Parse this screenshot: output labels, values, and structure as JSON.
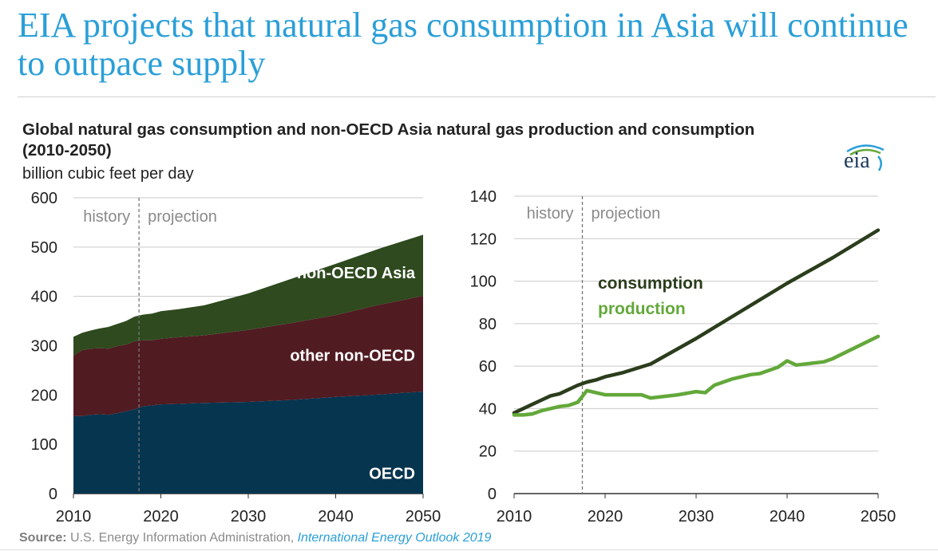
{
  "slide": {
    "title": "EIA projects that natural gas consumption in Asia will continue to outpace supply"
  },
  "chart_header": {
    "title": "Global natural gas consumption and non-OECD Asia natural gas production and consumption (2010-2050)",
    "units": "billion cubic feet per day",
    "logo_text": "eia"
  },
  "source": {
    "label": "Source:",
    "text": "U.S. Energy Information Administration,",
    "link": "International Energy Outlook 2019"
  },
  "colors": {
    "oecd": "#06354f",
    "other_non_oecd": "#511b22",
    "non_oecd_asia": "#2e4a1e",
    "consumption": "#2b3d1c",
    "production": "#63a83a",
    "divider": "#777777",
    "annotation": "#8a8a8a"
  },
  "chart_data": [
    {
      "type": "area",
      "stacked": true,
      "x": [
        2010,
        2011,
        2012,
        2013,
        2014,
        2015,
        2016,
        2017,
        2018,
        2019,
        2020,
        2022,
        2025,
        2030,
        2035,
        2040,
        2045,
        2050
      ],
      "series": [
        {
          "name": "OECD",
          "values": [
            157,
            157,
            160,
            161,
            160,
            163,
            167,
            171,
            177,
            179,
            181,
            182,
            184,
            186,
            190,
            196,
            201,
            207
          ]
        },
        {
          "name": "other non-OECD",
          "values": [
            123,
            134,
            134,
            134,
            134,
            136,
            135,
            138,
            134,
            132,
            133,
            135,
            137,
            146,
            156,
            166,
            182,
            194
          ]
        },
        {
          "name": "non-OECD Asia",
          "values": [
            38,
            35,
            37,
            40,
            44,
            45,
            48,
            50,
            52,
            54,
            56,
            57,
            61,
            74,
            90,
            104,
            114,
            124
          ]
        }
      ],
      "xlim": [
        2010,
        2050
      ],
      "ylim": [
        0,
        600
      ],
      "xticks": [
        "2010",
        "2020",
        "2030",
        "2040",
        "2050"
      ],
      "yticks": [
        "0",
        "100",
        "200",
        "300",
        "400",
        "500",
        "600"
      ],
      "annotations": {
        "history": "history",
        "projection": "projection",
        "divider_year": 2017.5
      }
    },
    {
      "type": "line",
      "series": [
        {
          "name": "consumption",
          "x": [
            2010,
            2011,
            2012,
            2013,
            2014,
            2015,
            2016,
            2017,
            2018,
            2019,
            2020,
            2022,
            2025,
            2030,
            2035,
            2040,
            2045,
            2050
          ],
          "values": [
            38,
            40,
            42,
            44,
            46,
            47,
            49,
            51,
            52.5,
            53.5,
            55,
            57,
            61,
            73,
            86,
            99,
            111,
            124
          ]
        },
        {
          "name": "production",
          "x": [
            2010,
            2011,
            2012,
            2013,
            2014,
            2015,
            2016,
            2017,
            2018,
            2019,
            2020,
            2021,
            2022,
            2024,
            2025,
            2028,
            2030,
            2031,
            2032,
            2034,
            2036,
            2037,
            2039,
            2040,
            2041,
            2044,
            2045,
            2050
          ],
          "values": [
            37,
            37,
            37.5,
            39,
            40,
            41,
            41.5,
            43,
            48.5,
            47.5,
            46.5,
            46.5,
            46.5,
            46.5,
            45,
            46.5,
            48,
            47.5,
            51,
            54,
            56,
            56.5,
            59.5,
            62.5,
            60.5,
            62,
            63.5,
            74
          ]
        }
      ],
      "xlim": [
        2010,
        2050
      ],
      "ylim": [
        0,
        140
      ],
      "xticks": [
        "2010",
        "2020",
        "2030",
        "2040",
        "2050"
      ],
      "yticks": [
        "0",
        "20",
        "40",
        "60",
        "80",
        "100",
        "120",
        "140"
      ],
      "annotations": {
        "history": "history",
        "projection": "projection",
        "divider_year": 2017.5
      }
    }
  ]
}
